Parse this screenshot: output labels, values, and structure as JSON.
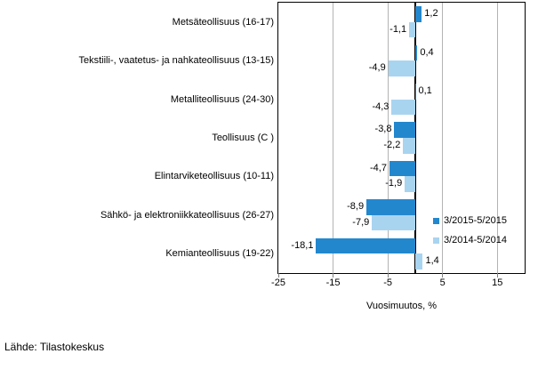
{
  "source": "Lähde: Tilastokeskus",
  "colors": {
    "series_dark": "#2387ce",
    "series_light": "#a9d4f0",
    "gridline": "#b3b3b3",
    "axis": "#000000"
  },
  "chart_data": {
    "type": "bar",
    "orientation": "horizontal",
    "title": "",
    "xlabel": "Vuosimuutos, %",
    "xlim": [
      -25,
      20
    ],
    "xticks": [
      -25,
      -15,
      -5,
      5,
      15
    ],
    "xtick_labels": [
      "-25",
      "-15",
      "-5",
      "5",
      "15"
    ],
    "grid": true,
    "legend_position": "inside-right-bottom",
    "categories": [
      "Metsäteollisuus (16-17)",
      "Tekstiili-, vaatetus- ja nahkateollisuus (13-15)",
      "Metalliteollisuus (24-30)",
      "Teollisuus (C )",
      "Elintarviketeollisuus (10-11)",
      "Sähkö- ja elektroniikkateollisuus (26-27)",
      "Kemianteollisuus (19-22)"
    ],
    "series": [
      {
        "name": "3/2015-5/2015",
        "color": "#2387ce",
        "values": [
          1.2,
          0.4,
          0.1,
          -3.8,
          -4.7,
          -8.9,
          -18.1
        ],
        "labels": [
          "1,2",
          "0,4",
          "0,1",
          "-3,8",
          "-4,7",
          "-8,9",
          "-18,1"
        ]
      },
      {
        "name": "3/2014-5/2014",
        "color": "#a9d4f0",
        "values": [
          -1.1,
          -4.9,
          -4.3,
          -2.2,
          -1.9,
          -7.9,
          1.4
        ],
        "labels": [
          "-1,1",
          "-4,9",
          "-4,3",
          "-2,2",
          "-1,9",
          "-7,9",
          "1,4"
        ]
      }
    ]
  }
}
